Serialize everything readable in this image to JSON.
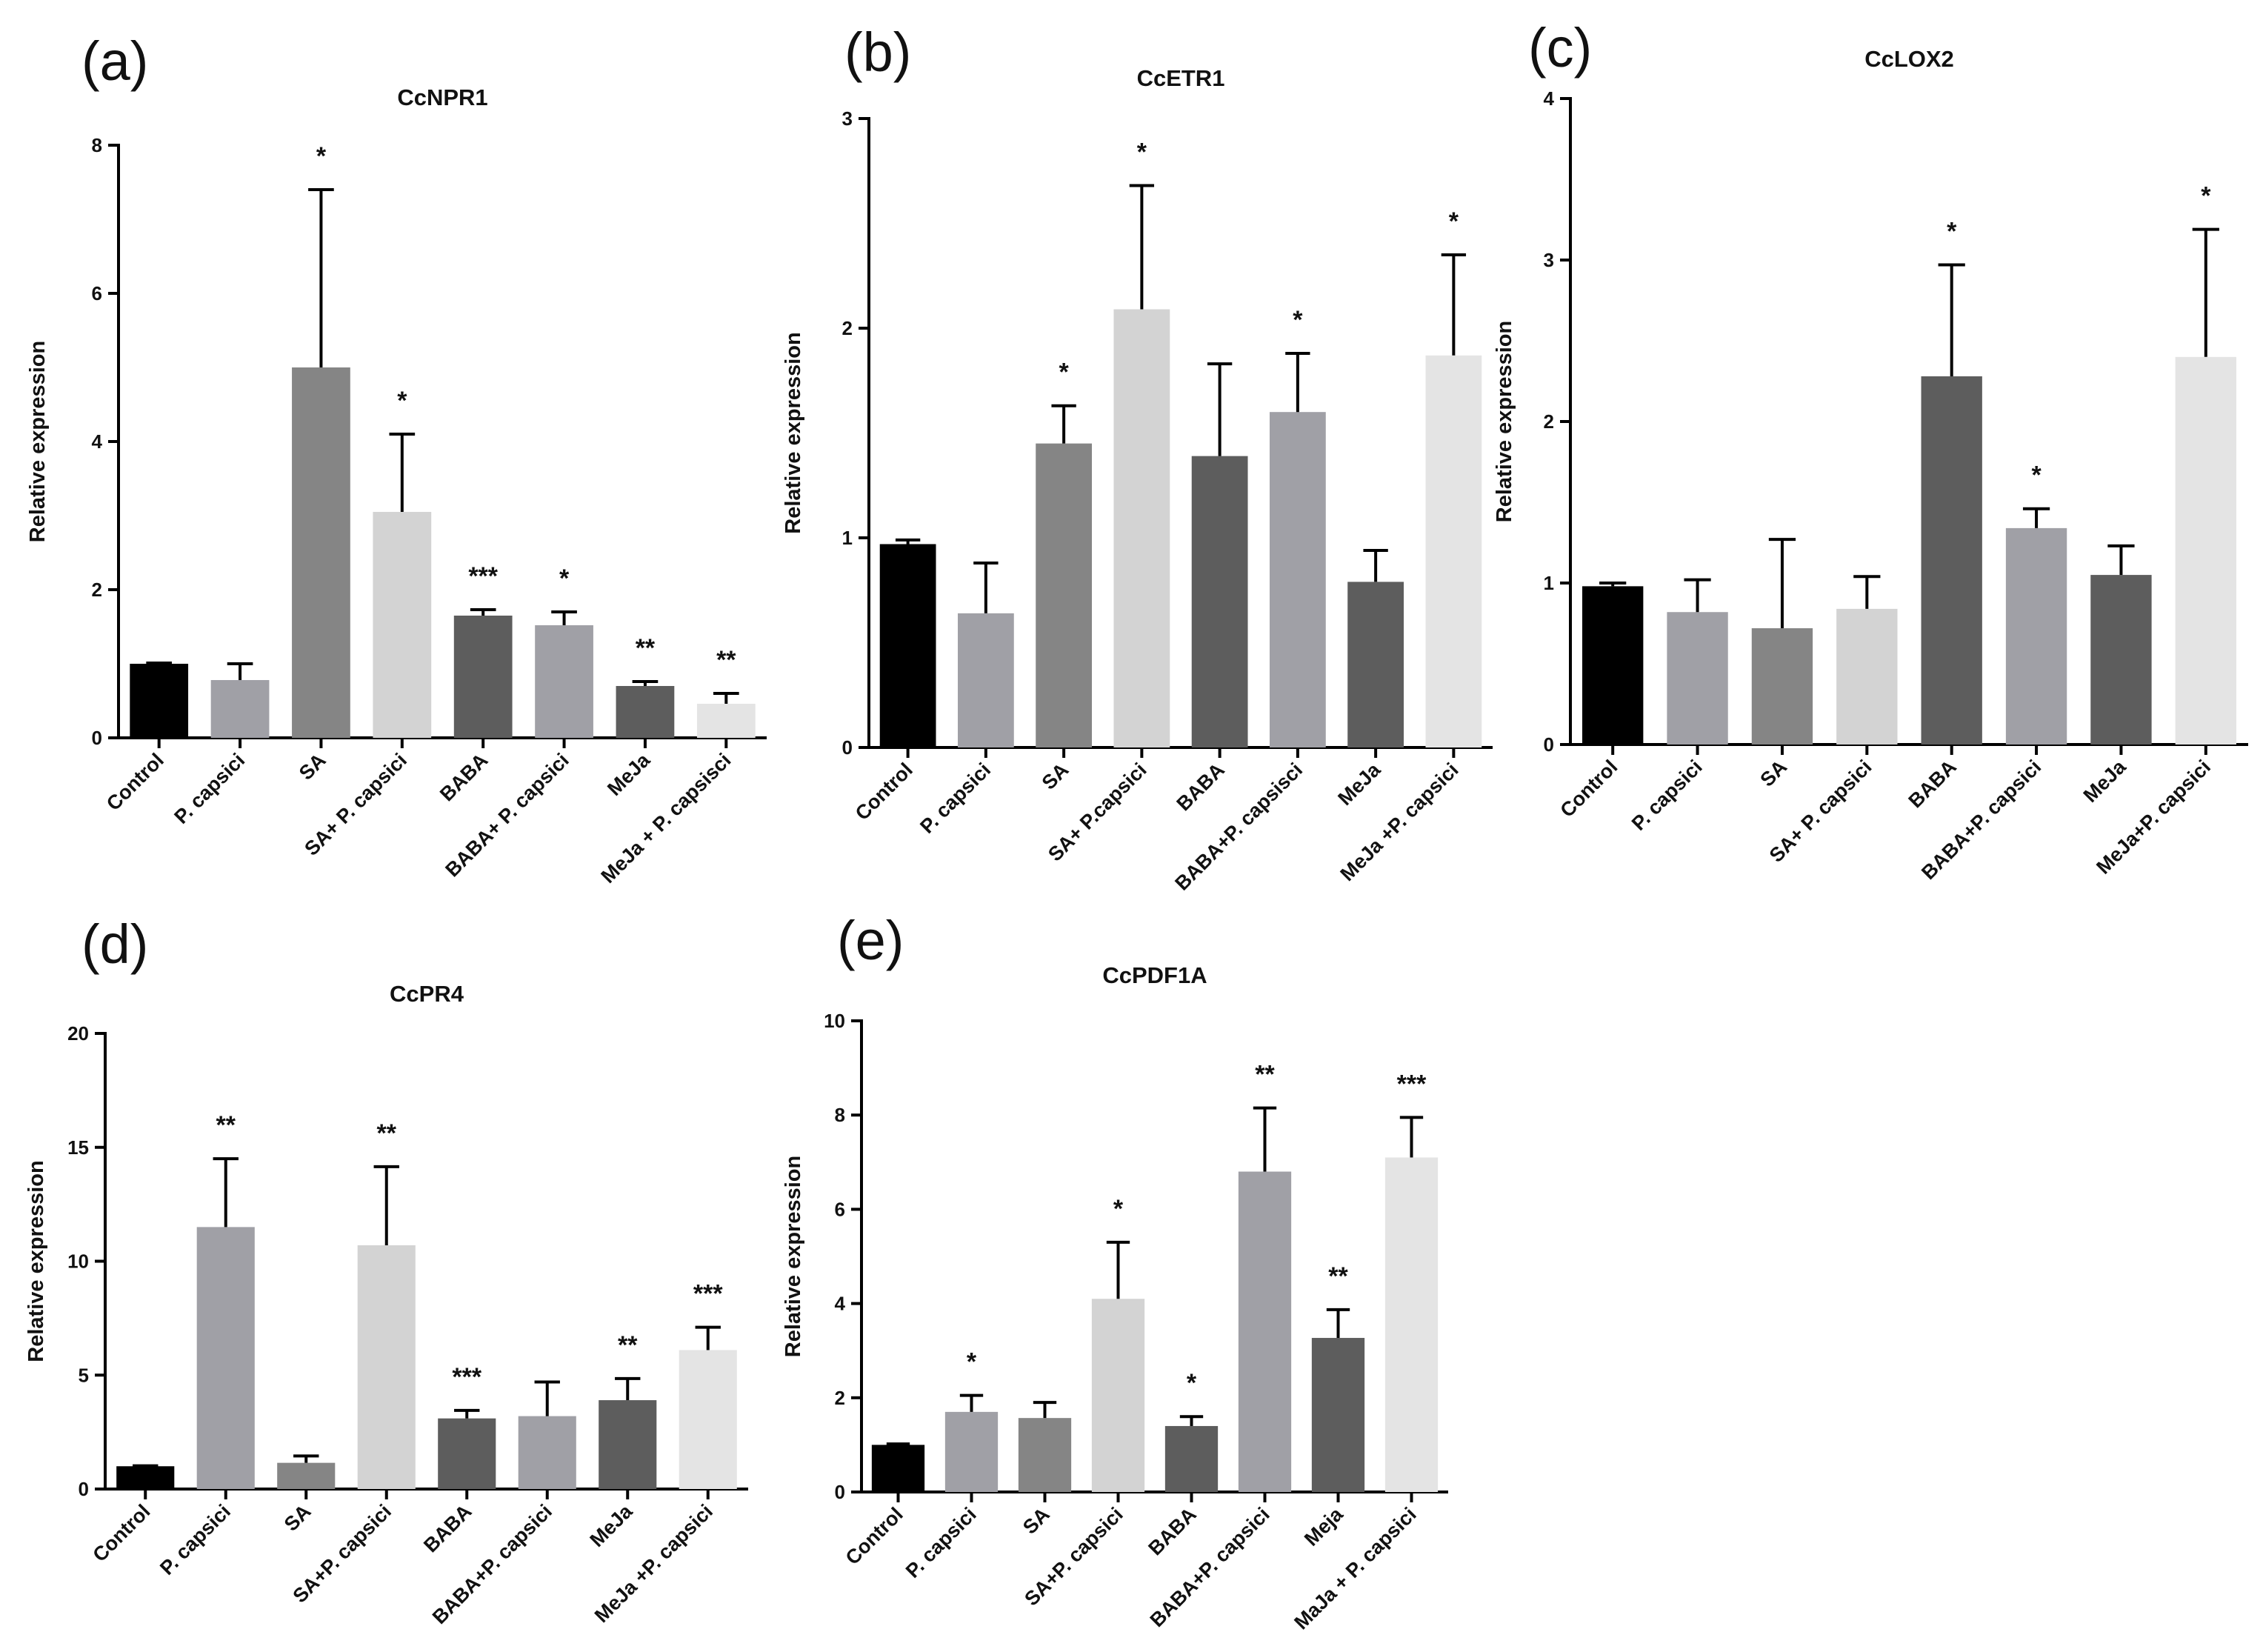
{
  "figure": {
    "colors": {
      "black": "#000000",
      "mid_gray": "#a0a0a6",
      "gray": "#858585",
      "light": "#d3d3d3",
      "dark": "#5d5d5d",
      "very_light": "#e4e4e4"
    }
  },
  "chart_data": [
    {
      "panel": "(a)",
      "type": "bar",
      "title": "CcNPR1",
      "xlabel": "",
      "ylabel": "Relative expression",
      "ylim": [
        0,
        8
      ],
      "yticks": [
        0,
        2,
        4,
        6,
        8
      ],
      "categories": [
        "Control",
        "P. capsici",
        "SA",
        "SA+ P. capsici",
        "BABA",
        "BABA+ P. capsici",
        "MeJa",
        "MeJa + P. capsisci"
      ],
      "values": [
        1.0,
        0.78,
        5.0,
        3.05,
        1.65,
        1.52,
        0.7,
        0.46
      ],
      "errors": [
        0.01,
        0.22,
        2.4,
        1.05,
        0.08,
        0.18,
        0.06,
        0.14
      ],
      "significance": [
        "",
        "",
        "*",
        "*",
        "***",
        "*",
        "**",
        "**"
      ],
      "colors": [
        "black",
        "mid_gray",
        "gray",
        "light",
        "dark",
        "mid_gray",
        "dark",
        "very_light"
      ]
    },
    {
      "panel": "(b)",
      "type": "bar",
      "title": "CcETR1",
      "xlabel": "",
      "ylabel": "Relative expression",
      "ylim": [
        0,
        3
      ],
      "yticks": [
        0,
        1,
        2,
        3
      ],
      "categories": [
        "Control",
        "P. capsici",
        "SA",
        "SA+ P.capsici",
        "BABA",
        "BABA+P. capsisci",
        "MeJa",
        "MeJa +P. capsici"
      ],
      "values": [
        0.97,
        0.64,
        1.45,
        2.09,
        1.39,
        1.6,
        0.79,
        1.87
      ],
      "errors": [
        0.02,
        0.24,
        0.18,
        0.59,
        0.44,
        0.28,
        0.15,
        0.48
      ],
      "significance": [
        "",
        "",
        "*",
        "*",
        "",
        "*",
        "",
        "*"
      ],
      "colors": [
        "black",
        "mid_gray",
        "gray",
        "light",
        "dark",
        "mid_gray",
        "dark",
        "very_light"
      ]
    },
    {
      "panel": "(c)",
      "type": "bar",
      "title": "CcLOX2",
      "xlabel": "",
      "ylabel": "Relative expression",
      "ylim": [
        0,
        4
      ],
      "yticks": [
        0,
        1,
        2,
        3,
        4
      ],
      "categories": [
        "Control",
        "P. capsici",
        "SA",
        "SA+ P. capsici",
        "BABA",
        "BABA+P. capsici",
        "MeJa",
        "MeJa+P. capsici"
      ],
      "values": [
        0.98,
        0.82,
        0.72,
        0.84,
        2.28,
        1.34,
        1.05,
        2.4
      ],
      "errors": [
        0.02,
        0.2,
        0.55,
        0.2,
        0.69,
        0.12,
        0.18,
        0.79
      ],
      "significance": [
        "",
        "",
        "",
        "",
        "*",
        "*",
        "",
        "*"
      ],
      "colors": [
        "black",
        "mid_gray",
        "gray",
        "light",
        "dark",
        "mid_gray",
        "dark",
        "very_light"
      ]
    },
    {
      "panel": "(d)",
      "type": "bar",
      "title": "CcPR4",
      "xlabel": "",
      "ylabel": "Relative expression",
      "ylim": [
        0,
        20
      ],
      "yticks": [
        0,
        5,
        10,
        15,
        20
      ],
      "categories": [
        "Control",
        "P. capsici",
        "SA",
        "SA+P. capsici",
        "BABA",
        "BABA+P. capsici",
        "MeJa",
        "MeJa +P. capsici"
      ],
      "values": [
        1.0,
        11.5,
        1.15,
        10.7,
        3.1,
        3.2,
        3.9,
        6.1
      ],
      "errors": [
        0.02,
        3.0,
        0.3,
        3.45,
        0.35,
        1.5,
        0.95,
        1.0
      ],
      "significance": [
        "",
        "**",
        "",
        "**",
        "***",
        "",
        "**",
        "***"
      ],
      "colors": [
        "black",
        "mid_gray",
        "gray",
        "light",
        "dark",
        "mid_gray",
        "dark",
        "very_light"
      ]
    },
    {
      "panel": "(e)",
      "type": "bar",
      "title": "CcPDF1A",
      "xlabel": "",
      "ylabel": "Relative expression",
      "ylim": [
        0,
        10
      ],
      "yticks": [
        0,
        2,
        4,
        6,
        8,
        10
      ],
      "categories": [
        "Control",
        "P. capsici",
        "SA",
        "SA+P. capsici",
        "BABA",
        "BABA+P. capsici",
        "Meja",
        "MaJa + P. capsici"
      ],
      "values": [
        1.0,
        1.7,
        1.57,
        4.1,
        1.4,
        6.8,
        3.27,
        7.1
      ],
      "errors": [
        0.02,
        0.35,
        0.33,
        1.2,
        0.2,
        1.35,
        0.6,
        0.85
      ],
      "significance": [
        "",
        "*",
        "",
        "*",
        "*",
        "**",
        "**",
        "***"
      ],
      "colors": [
        "black",
        "mid_gray",
        "gray",
        "light",
        "dark",
        "mid_gray",
        "dark",
        "very_light"
      ]
    }
  ]
}
